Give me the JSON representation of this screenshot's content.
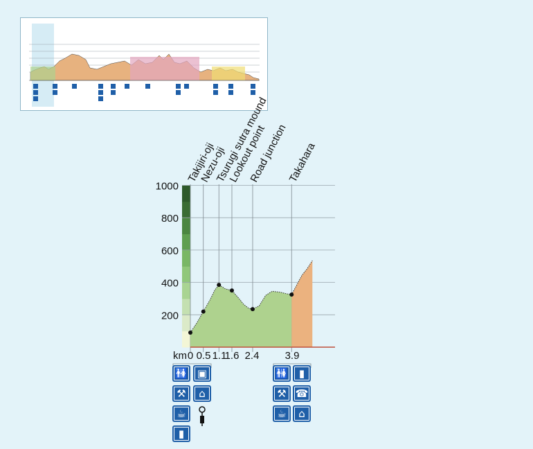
{
  "chart_data": {
    "type": "area",
    "title": "",
    "xlabel": "km",
    "ylabel": "",
    "y_ticks": [
      200,
      400,
      600,
      800,
      1000
    ],
    "x_ticks": [
      "0",
      "0.5",
      "1.1",
      "1.6",
      "2.4",
      "3.9"
    ],
    "ylim": [
      0,
      1000
    ],
    "xlim": [
      0,
      4.7
    ],
    "grid": true,
    "waypoints": [
      {
        "name": "Takijiri-oji",
        "km": 0,
        "elevation": 90
      },
      {
        "name": "Nezu-oji",
        "km": 0.5,
        "elevation": 220
      },
      {
        "name": "Tsurugi sutra mound",
        "km": 1.1,
        "elevation": 385
      },
      {
        "name": "Lookout point",
        "km": 1.6,
        "elevation": 350
      },
      {
        "name": "Road junction",
        "km": 2.4,
        "elevation": 235
      },
      {
        "name": "Takahara",
        "km": 3.9,
        "elevation": 325
      }
    ],
    "profile": [
      {
        "km": 0,
        "elevation": 90
      },
      {
        "km": 0.25,
        "elevation": 150
      },
      {
        "km": 0.5,
        "elevation": 220
      },
      {
        "km": 0.75,
        "elevation": 290
      },
      {
        "km": 0.95,
        "elevation": 355
      },
      {
        "km": 1.1,
        "elevation": 385
      },
      {
        "km": 1.35,
        "elevation": 360
      },
      {
        "km": 1.6,
        "elevation": 350
      },
      {
        "km": 1.85,
        "elevation": 305
      },
      {
        "km": 2.05,
        "elevation": 265
      },
      {
        "km": 2.25,
        "elevation": 240
      },
      {
        "km": 2.4,
        "elevation": 235
      },
      {
        "km": 2.65,
        "elevation": 255
      },
      {
        "km": 2.9,
        "elevation": 320
      },
      {
        "km": 3.15,
        "elevation": 345
      },
      {
        "km": 3.45,
        "elevation": 340
      },
      {
        "km": 3.7,
        "elevation": 330
      },
      {
        "km": 3.9,
        "elevation": 325
      },
      {
        "km": 4.1,
        "elevation": 385
      },
      {
        "km": 4.3,
        "elevation": 445
      },
      {
        "km": 4.5,
        "elevation": 485
      },
      {
        "km": 4.7,
        "elevation": 535
      }
    ],
    "segment_colors": {
      "first": "#aed28e",
      "second": "#ebb27f"
    },
    "segment_boundary_km": 3.9
  },
  "facilities": {
    "takijiri": [
      "toilet-icon",
      "gift-shop-icon",
      "rest-area-icon",
      "lodging-icon",
      "drinking-water-icon",
      "info-point-icon",
      "bus-stop-icon"
    ],
    "takahara": [
      "toilet-icon",
      "bus-stop-icon",
      "rest-area-icon",
      "telephone-icon",
      "drinking-water-icon",
      "lodging-icon"
    ]
  },
  "colors": {
    "background": "#e3f3f9",
    "facility_icon": "#1f5fa8",
    "grid": "#9aa6ad"
  }
}
